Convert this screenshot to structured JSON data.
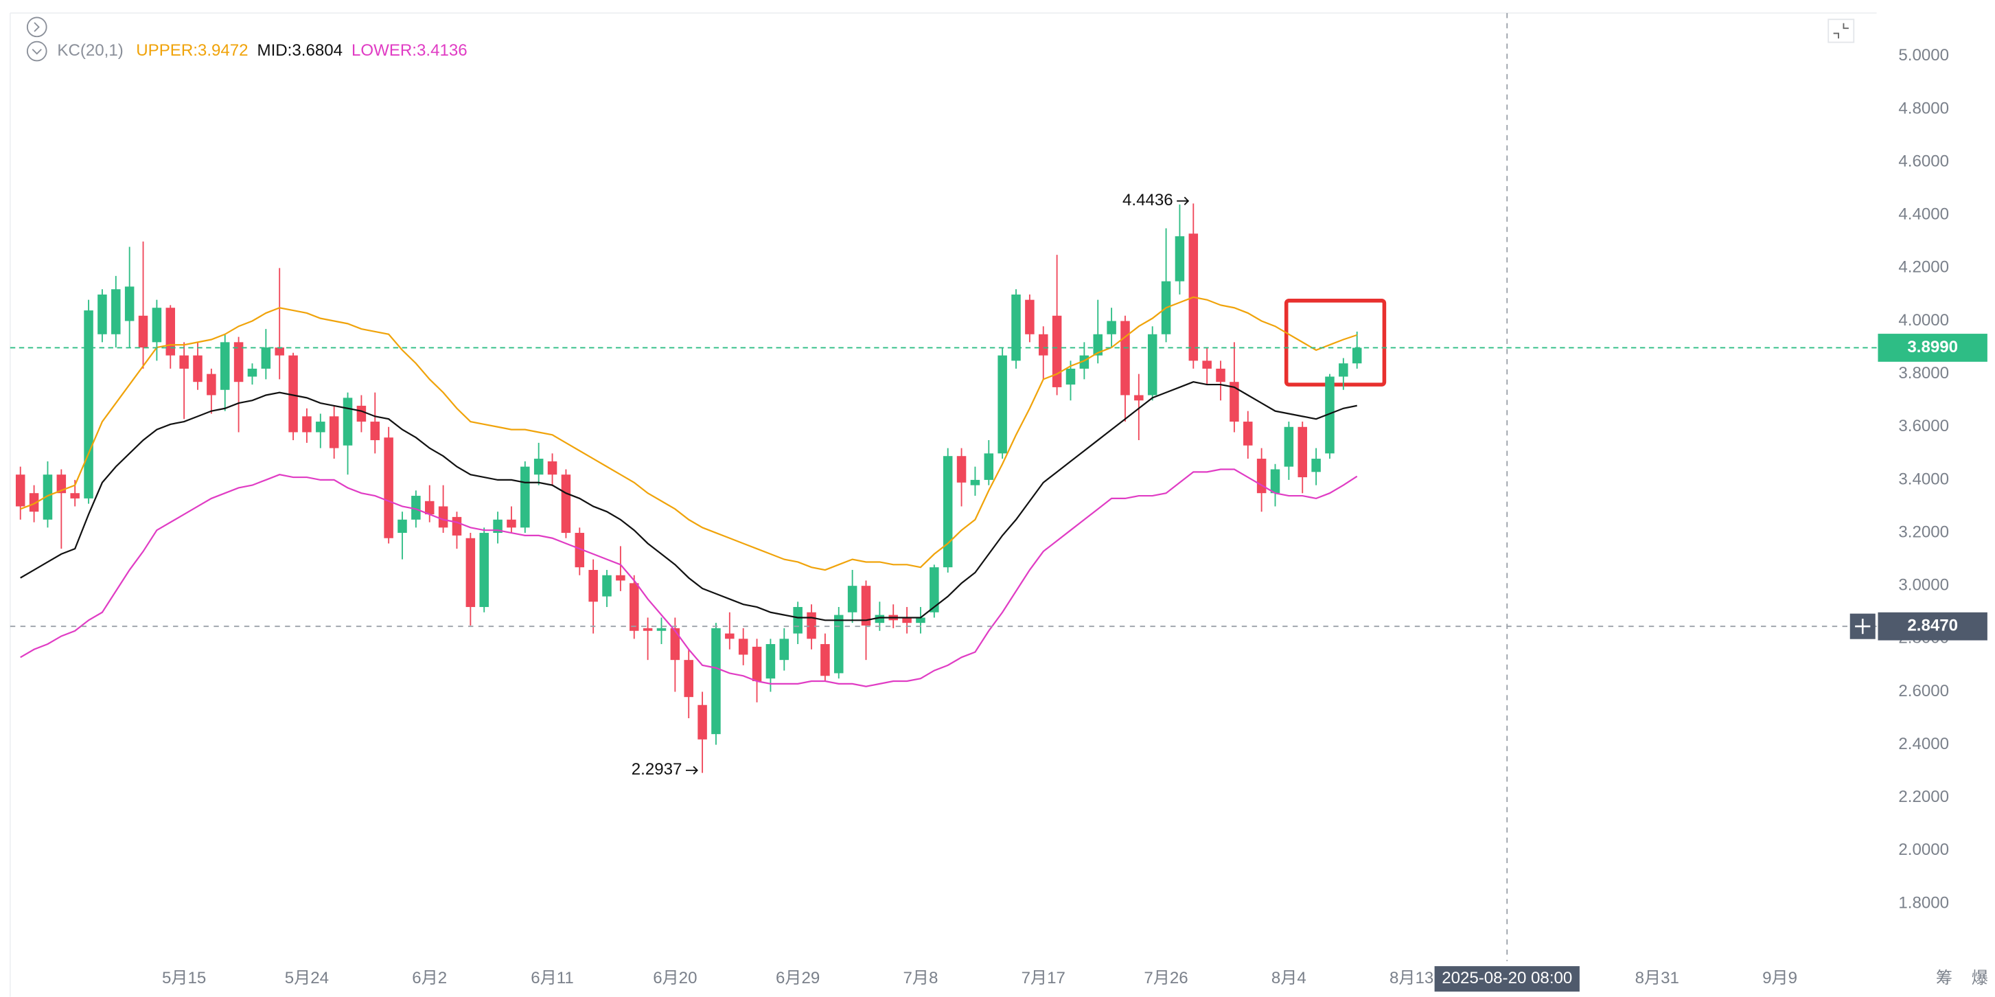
{
  "chart_data": {
    "type": "candlestick",
    "indicator": "KC(20,1)",
    "ylim": [
      1.583,
      5.163
    ],
    "yticks": [
      {
        "value": 5.0,
        "label": "5.0000"
      },
      {
        "value": 4.8,
        "label": "4.8000"
      },
      {
        "value": 4.6,
        "label": "4.6000"
      },
      {
        "value": 4.4,
        "label": "4.4000"
      },
      {
        "value": 4.2,
        "label": "4.2000"
      },
      {
        "value": 4.0,
        "label": "4.0000"
      },
      {
        "value": 3.8,
        "label": "3.8000"
      },
      {
        "value": 3.6,
        "label": "3.6000"
      },
      {
        "value": 3.4,
        "label": "3.4000"
      },
      {
        "value": 3.2,
        "label": "3.2000"
      },
      {
        "value": 3.0,
        "label": "3.0000"
      },
      {
        "value": 2.8,
        "label": "2.8000"
      },
      {
        "value": 2.6,
        "label": "2.6000"
      },
      {
        "value": 2.4,
        "label": "2.4000"
      },
      {
        "value": 2.2,
        "label": "2.2000"
      },
      {
        "value": 2.0,
        "label": "2.0000"
      },
      {
        "value": 1.8,
        "label": "1.8000"
      }
    ],
    "xlim": [
      -0.75,
      136.1
    ],
    "xticks": [
      {
        "value": 12,
        "label": "5月15"
      },
      {
        "value": 21,
        "label": "5月24"
      },
      {
        "value": 30,
        "label": "6月2"
      },
      {
        "value": 39,
        "label": "6月11"
      },
      {
        "value": 48,
        "label": "6月20"
      },
      {
        "value": 57,
        "label": "6月29"
      },
      {
        "value": 66,
        "label": "7月8"
      },
      {
        "value": 75,
        "label": "7月17"
      },
      {
        "value": 84,
        "label": "7月26"
      },
      {
        "value": 93,
        "label": "8月4"
      },
      {
        "value": 102,
        "label": "8月13"
      },
      {
        "value": 120,
        "label": "8月31"
      },
      {
        "value": 129,
        "label": "9月9"
      }
    ],
    "up_color": "#2ebd85",
    "down_color": "#f0475a",
    "open": [
      3.42,
      3.35,
      3.25,
      3.42,
      3.35,
      3.33,
      3.95,
      3.95,
      4.0,
      4.02,
      3.92,
      4.05,
      3.87,
      3.87,
      3.8,
      3.74,
      3.92,
      3.79,
      3.82,
      3.9,
      3.87,
      3.64,
      3.58,
      3.64,
      3.53,
      3.68,
      3.62,
      3.56,
      3.2,
      3.25,
      3.32,
      3.3,
      3.26,
      3.18,
      2.92,
      3.2,
      3.25,
      3.22,
      3.42,
      3.47,
      3.42,
      3.2,
      3.06,
      2.96,
      3.04,
      3.01,
      2.84,
      2.83,
      2.84,
      2.72,
      2.55,
      2.44,
      2.82,
      2.8,
      2.77,
      2.65,
      2.72,
      2.82,
      2.9,
      2.78,
      2.67,
      2.9,
      3.0,
      2.86,
      2.89,
      2.88,
      2.86,
      2.9,
      3.07,
      3.49,
      3.38,
      3.4,
      3.5,
      3.85,
      4.08,
      3.95,
      4.02,
      3.76,
      3.82,
      3.87,
      3.95,
      4.0,
      3.72,
      3.72,
      3.95,
      4.15,
      4.33,
      3.85,
      3.82,
      3.77,
      3.62,
      3.48,
      3.35,
      3.45,
      3.6,
      3.43,
      3.5,
      3.79,
      3.84
    ],
    "high": [
      3.45,
      3.38,
      3.47,
      3.44,
      3.4,
      4.08,
      4.12,
      4.17,
      4.28,
      4.3,
      4.08,
      4.06,
      3.92,
      3.92,
      3.82,
      3.95,
      3.94,
      3.84,
      3.97,
      4.2,
      3.88,
      3.67,
      3.65,
      3.68,
      3.73,
      3.72,
      3.73,
      3.6,
      3.28,
      3.36,
      3.38,
      3.38,
      3.28,
      3.2,
      3.22,
      3.28,
      3.3,
      3.47,
      3.54,
      3.5,
      3.44,
      3.22,
      3.1,
      3.06,
      3.15,
      3.04,
      2.88,
      2.88,
      2.88,
      2.76,
      2.6,
      2.86,
      2.9,
      2.84,
      2.8,
      2.8,
      2.84,
      2.94,
      2.93,
      2.82,
      2.92,
      3.06,
      3.02,
      2.94,
      2.93,
      2.92,
      2.92,
      3.08,
      3.52,
      3.52,
      3.45,
      3.55,
      3.9,
      4.12,
      4.1,
      3.98,
      4.25,
      3.85,
      3.92,
      4.08,
      4.05,
      4.02,
      3.8,
      3.98,
      4.35,
      4.44,
      4.4436,
      3.9,
      3.85,
      3.92,
      3.66,
      3.52,
      3.46,
      3.62,
      3.62,
      3.52,
      3.8,
      3.86,
      3.96
    ],
    "low": [
      3.25,
      3.24,
      3.22,
      3.14,
      3.3,
      3.31,
      3.92,
      3.9,
      3.9,
      3.82,
      3.85,
      3.82,
      3.63,
      3.74,
      3.65,
      3.66,
      3.58,
      3.76,
      3.78,
      3.78,
      3.55,
      3.54,
      3.52,
      3.48,
      3.42,
      3.58,
      3.5,
      3.16,
      3.1,
      3.22,
      3.24,
      3.2,
      3.14,
      2.85,
      2.9,
      3.16,
      3.2,
      3.2,
      3.38,
      3.38,
      3.18,
      3.04,
      2.82,
      2.92,
      2.98,
      2.8,
      2.72,
      2.78,
      2.6,
      2.5,
      2.2937,
      2.4,
      2.76,
      2.7,
      2.56,
      2.6,
      2.68,
      2.78,
      2.76,
      2.64,
      2.65,
      2.86,
      2.72,
      2.83,
      2.84,
      2.82,
      2.82,
      2.88,
      3.05,
      3.3,
      3.34,
      3.38,
      3.48,
      3.82,
      3.92,
      3.78,
      3.72,
      3.7,
      3.78,
      3.84,
      3.9,
      3.62,
      3.55,
      3.7,
      3.92,
      4.1,
      3.82,
      3.76,
      3.7,
      3.58,
      3.48,
      3.28,
      3.3,
      3.4,
      3.35,
      3.38,
      3.48,
      3.74,
      3.82
    ],
    "close": [
      3.3,
      3.28,
      3.42,
      3.35,
      3.33,
      4.04,
      4.1,
      4.12,
      4.13,
      3.9,
      4.05,
      3.87,
      3.82,
      3.77,
      3.72,
      3.92,
      3.77,
      3.82,
      3.9,
      3.87,
      3.58,
      3.58,
      3.62,
      3.52,
      3.71,
      3.62,
      3.55,
      3.18,
      3.25,
      3.34,
      3.27,
      3.22,
      3.19,
      2.92,
      3.2,
      3.25,
      3.22,
      3.45,
      3.48,
      3.42,
      3.2,
      3.07,
      2.94,
      3.04,
      3.02,
      2.83,
      2.83,
      2.84,
      2.72,
      2.58,
      2.42,
      2.84,
      2.8,
      2.74,
      2.64,
      2.78,
      2.8,
      2.92,
      2.8,
      2.66,
      2.89,
      3.0,
      2.85,
      2.89,
      2.87,
      2.86,
      2.88,
      3.07,
      3.49,
      3.39,
      3.4,
      3.5,
      3.87,
      4.1,
      3.95,
      3.87,
      3.75,
      3.82,
      3.87,
      3.95,
      4.0,
      3.72,
      3.7,
      3.95,
      4.15,
      4.32,
      3.85,
      3.82,
      3.77,
      3.62,
      3.53,
      3.35,
      3.44,
      3.6,
      3.41,
      3.48,
      3.79,
      3.84,
      3.899
    ],
    "series": [
      {
        "name": "UPPER:3.9472",
        "color": "#f0a30a",
        "values": [
          3.29,
          3.31,
          3.34,
          3.36,
          3.38,
          3.5,
          3.62,
          3.69,
          3.76,
          3.83,
          3.9,
          3.91,
          3.91,
          3.92,
          3.93,
          3.95,
          3.98,
          4.0,
          4.03,
          4.05,
          4.04,
          4.03,
          4.01,
          4.0,
          3.99,
          3.97,
          3.96,
          3.95,
          3.89,
          3.84,
          3.78,
          3.73,
          3.67,
          3.62,
          3.61,
          3.6,
          3.59,
          3.59,
          3.58,
          3.57,
          3.54,
          3.51,
          3.48,
          3.45,
          3.42,
          3.39,
          3.35,
          3.32,
          3.29,
          3.25,
          3.22,
          3.2,
          3.18,
          3.16,
          3.14,
          3.12,
          3.1,
          3.09,
          3.07,
          3.06,
          3.08,
          3.1,
          3.09,
          3.09,
          3.08,
          3.08,
          3.07,
          3.12,
          3.16,
          3.21,
          3.25,
          3.36,
          3.46,
          3.57,
          3.67,
          3.78,
          3.8,
          3.83,
          3.85,
          3.88,
          3.9,
          3.94,
          3.98,
          4.01,
          4.05,
          4.07,
          4.09,
          4.08,
          4.06,
          4.05,
          4.03,
          4.0,
          3.98,
          3.95,
          3.92,
          3.89,
          3.91,
          3.93,
          3.9472
        ]
      },
      {
        "name": "MID:3.6804",
        "color": "#111111",
        "values": [
          3.03,
          3.06,
          3.09,
          3.12,
          3.14,
          3.27,
          3.39,
          3.45,
          3.5,
          3.55,
          3.59,
          3.61,
          3.62,
          3.64,
          3.66,
          3.67,
          3.69,
          3.7,
          3.72,
          3.73,
          3.72,
          3.71,
          3.69,
          3.68,
          3.67,
          3.66,
          3.64,
          3.63,
          3.59,
          3.56,
          3.52,
          3.49,
          3.45,
          3.42,
          3.41,
          3.4,
          3.4,
          3.39,
          3.39,
          3.38,
          3.35,
          3.33,
          3.3,
          3.28,
          3.25,
          3.21,
          3.16,
          3.12,
          3.08,
          3.03,
          2.99,
          2.97,
          2.95,
          2.93,
          2.92,
          2.9,
          2.89,
          2.88,
          2.88,
          2.87,
          2.87,
          2.87,
          2.87,
          2.88,
          2.88,
          2.88,
          2.88,
          2.92,
          2.96,
          3.01,
          3.05,
          3.12,
          3.19,
          3.25,
          3.32,
          3.39,
          3.43,
          3.47,
          3.51,
          3.55,
          3.59,
          3.63,
          3.67,
          3.71,
          3.73,
          3.75,
          3.77,
          3.76,
          3.76,
          3.75,
          3.72,
          3.69,
          3.66,
          3.65,
          3.64,
          3.63,
          3.65,
          3.67,
          3.6804
        ]
      },
      {
        "name": "LOWER:3.4136",
        "color": "#e03cc4",
        "values": [
          2.73,
          2.76,
          2.78,
          2.81,
          2.83,
          2.87,
          2.9,
          2.98,
          3.06,
          3.13,
          3.21,
          3.24,
          3.27,
          3.3,
          3.33,
          3.35,
          3.37,
          3.38,
          3.4,
          3.42,
          3.41,
          3.41,
          3.4,
          3.4,
          3.37,
          3.35,
          3.34,
          3.32,
          3.3,
          3.29,
          3.27,
          3.25,
          3.24,
          3.22,
          3.21,
          3.21,
          3.2,
          3.19,
          3.19,
          3.18,
          3.16,
          3.14,
          3.12,
          3.1,
          3.08,
          3.02,
          2.95,
          2.89,
          2.83,
          2.76,
          2.7,
          2.69,
          2.67,
          2.66,
          2.64,
          2.63,
          2.63,
          2.63,
          2.64,
          2.64,
          2.63,
          2.63,
          2.62,
          2.63,
          2.64,
          2.64,
          2.65,
          2.68,
          2.7,
          2.73,
          2.75,
          2.83,
          2.9,
          2.98,
          3.06,
          3.13,
          3.17,
          3.21,
          3.25,
          3.29,
          3.33,
          3.33,
          3.34,
          3.34,
          3.35,
          3.39,
          3.43,
          3.43,
          3.44,
          3.44,
          3.41,
          3.38,
          3.35,
          3.34,
          3.34,
          3.33,
          3.35,
          3.38,
          3.4136
        ]
      }
    ],
    "last_price": {
      "value": 3.899,
      "label": "3.8990"
    },
    "crosshair": {
      "x": 109,
      "x_label": "2025-08-20 08:00",
      "y": 2.847,
      "y_label": "2.8470"
    },
    "toolbar": [
      "筹",
      "爆"
    ]
  }
}
